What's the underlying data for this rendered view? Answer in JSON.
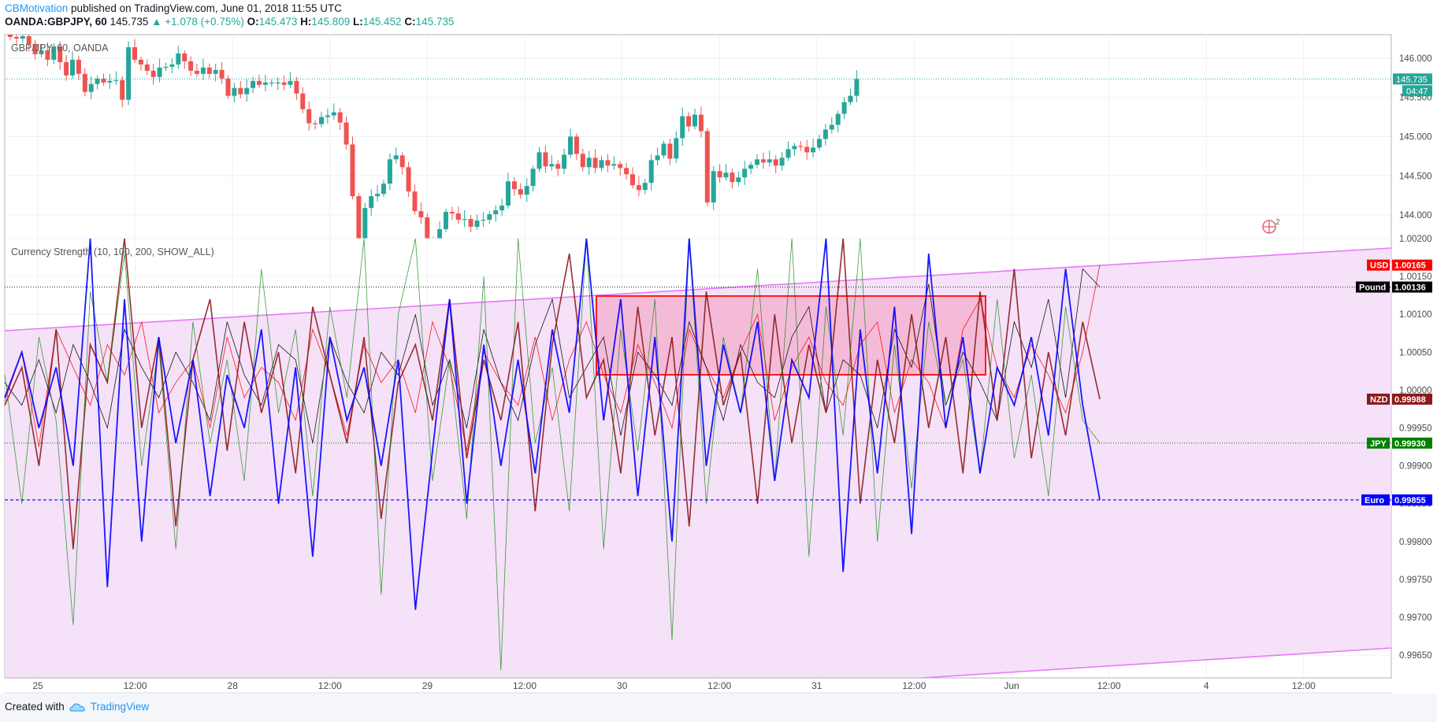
{
  "header": {
    "author": "CBMotivation",
    "published_text": " published on TradingView.com, June 01, 2018 11:55 UTC",
    "symbol": "OANDA:GBPJPY, 60",
    "last": "145.735",
    "change": "▲ +1.078 (+0.75%)",
    "o_label": "O:",
    "o_value": "145.473",
    "h_label": "H:",
    "h_value": "145.809",
    "l_label": "L:",
    "l_value": "145.452",
    "c_label": "C:",
    "c_value": "145.735"
  },
  "footer": {
    "created_with": "Created with",
    "brand": "TradingView"
  },
  "colors": {
    "up": "#26a69a",
    "down": "#ef5350",
    "usd": "#ff0000",
    "pound": "#000000",
    "nzd": "#8b1a1a",
    "jpy": "#008000",
    "euro": "#0000ff",
    "channel": "#e040fb"
  },
  "chart_data": [
    {
      "type": "candlestick",
      "title": "GBP/JPY, 60, OANDA",
      "price_axis_ticks": [
        "146.000",
        "145.500",
        "145.000",
        "144.500",
        "144.000"
      ],
      "ylim": [
        143.7,
        146.3
      ],
      "last_price_label": "145.735",
      "countdown_label": "04:47",
      "time_axis_ticks": [
        "25",
        "12:00",
        "28",
        "12:00",
        "29",
        "12:00",
        "30",
        "12:00",
        "31",
        "12:00",
        "Jun",
        "12:00",
        "4",
        "12:00"
      ],
      "candles_close": [
        146.27,
        146.25,
        146.28,
        146.18,
        146.05,
        146.1,
        145.98,
        146.15,
        145.95,
        145.78,
        145.98,
        145.8,
        145.57,
        145.67,
        145.74,
        145.69,
        145.71,
        145.72,
        145.47,
        146.14,
        145.98,
        145.92,
        145.84,
        145.76,
        145.88,
        145.89,
        145.92,
        146.06,
        145.96,
        145.84,
        145.8,
        145.88,
        145.8,
        145.85,
        145.74,
        145.52,
        145.62,
        145.54,
        145.62,
        145.71,
        145.66,
        145.69,
        145.69,
        145.69,
        145.66,
        145.71,
        145.55,
        145.35,
        145.17,
        145.16,
        145.25,
        145.27,
        145.31,
        145.18,
        144.9,
        144.24,
        143.6,
        144.09,
        144.24,
        144.27,
        144.4,
        144.71,
        144.76,
        144.61,
        144.3,
        144.05,
        143.97,
        143.65,
        143.44,
        143.82,
        144.04,
        144.02,
        143.94,
        143.95,
        143.85,
        143.93,
        143.94,
        144.01,
        144.06,
        144.12,
        144.43,
        144.33,
        144.26,
        144.37,
        144.59,
        144.8,
        144.62,
        144.65,
        144.59,
        144.77,
        145.0,
        144.78,
        144.61,
        144.73,
        144.6,
        144.7,
        144.63,
        144.65,
        144.6,
        144.52,
        144.38,
        144.32,
        144.41,
        144.7,
        144.76,
        144.91,
        144.72,
        144.98,
        145.26,
        145.13,
        145.28,
        145.07,
        144.16,
        144.56,
        144.48,
        144.54,
        144.42,
        144.48,
        144.59,
        144.64,
        144.71,
        144.67,
        144.71,
        144.63,
        144.73,
        144.84,
        144.88,
        144.87,
        144.8,
        144.86,
        144.97,
        145.09,
        145.15,
        145.29,
        145.44,
        145.52,
        145.735
      ]
    },
    {
      "type": "line",
      "title": "Currency Strength (10, 100, 200, SHOW_ALL)",
      "axis_ticks": [
        "1.00200",
        "1.00150",
        "1.00100",
        "1.00050",
        "1.00000",
        "0.99950",
        "0.99900",
        "0.99850",
        "0.99800",
        "0.99750",
        "0.99700",
        "0.99650"
      ],
      "ylim": [
        0.9962,
        1.002
      ],
      "series": [
        {
          "name": "USD",
          "last_label": "1.00165",
          "values": [
            0.99985,
            1.0005,
            0.99925,
            1.0008,
            1.0003,
            0.9998,
            1.0006,
            1.0002,
            1.0009,
            0.9997,
            1.0001,
            1.0004,
            0.9995,
            1.0007,
            0.9999,
            1.0003,
            1.0001,
            0.9996,
            1.0008,
            1.0002,
            0.9994,
            1.0006,
            1.0001,
            1.0004,
            0.9997,
            1.0009,
            1.0003,
            0.9992,
            1.0005,
            1.0001,
            0.9998,
            1.0007,
            0.9996,
            1.0004,
            1.0009,
            1.0002,
            0.9997,
            1.0006,
            1.0001,
            0.9995,
            1.0008,
            1.0003,
            0.9999,
            1.0005,
            1.001,
            0.9996,
            1.0003,
            1.0007,
            1.0001,
            0.9998,
            1.0006,
            1.0009,
            0.9997,
            1.0004,
            1.0001,
            0.9995,
            1.0008,
            1.0012,
            1.0003,
            0.9999,
            1.0006,
            1.0002,
            0.9997,
            1.0005,
            1.00165
          ]
        },
        {
          "name": "Pound",
          "last_label": "1.00136",
          "values": [
            1.0001,
            0.9998,
            1.0004,
            0.9997,
            1.0006,
            1.0001,
            0.9995,
            1.0008,
            1.0003,
            0.9999,
            1.0005,
            1.0001,
            0.9996,
            1.0009,
            1.0002,
            0.9998,
            1.0006,
            1.0004,
            0.9993,
            1.0007,
            1.0001,
            0.9997,
            1.0005,
            1.0002,
            1.001,
            0.9998,
            1.0004,
            0.9995,
            1.0008,
            1.0001,
            0.9996,
            1.0006,
            1.0012,
            0.9999,
            1.0003,
            1.0007,
            0.9994,
            1.0005,
            1.0002,
            0.9998,
            1.0009,
            1.0003,
            0.9996,
            1.0006,
            1.0001,
            0.9999,
            1.0007,
            1.0011,
            0.9997,
            1.0004,
            1.0002,
            0.9995,
            1.0008,
            1.0003,
            1.0014,
            0.9998,
            1.0005,
            1.0001,
            0.9996,
            1.0009,
            1.0003,
            1.0012,
            0.9999,
            1.0016,
            1.00136
          ]
        },
        {
          "name": "NZD",
          "last_label": "0.99988",
          "values": [
            0.9998,
            1.0003,
            0.999,
            1.0008,
            0.9979,
            1.0006,
            1.0001,
            1.002,
            0.9995,
            1.0007,
            0.9982,
            1.0004,
            1.0012,
            0.9992,
            1.0009,
            0.9997,
            1.0005,
            0.9989,
            1.0011,
            1.0002,
            0.9993,
            1.0007,
            0.9983,
            1.0001,
            1.0006,
            0.9996,
            1.0012,
            0.9991,
            1.0004,
            0.9996,
            1.0009,
            0.9984,
            1.0006,
            1.0018,
            0.9999,
            1.0004,
            0.9989,
            1.0011,
            0.9994,
            1.0007,
            0.9982,
            1.0013,
            0.9998,
            1.0005,
            0.9985,
            1.001,
            0.9993,
            1.0006,
            0.9997,
            1.002,
            0.9985,
            1.0004,
            0.9993,
            1.001,
            0.9995,
            1.0007,
            0.9989,
            1.0013,
            0.9996,
            1.0016,
            0.9991,
            1.0005,
            0.9994,
            1.0009,
            0.99988
          ]
        },
        {
          "name": "JPY",
          "last_label": "0.99930",
          "values": [
            1.0002,
            0.9985,
            1.0007,
            0.9996,
            0.9969,
            1.0013,
            1.0001,
            1.0018,
            0.999,
            1.0006,
            0.9979,
            1.0009,
            0.9993,
            1.0004,
            0.9988,
            1.0016,
            0.9997,
            1.0008,
            0.9986,
            1.0011,
            0.9999,
            1.002,
            0.9973,
            1.001,
            1.002,
            0.9988,
            1.0004,
            0.9983,
            1.0015,
            0.9963,
            1.002,
            0.9993,
            1.0003,
            0.9984,
            1.002,
            0.9979,
            1.0008,
            0.9992,
            1.0012,
            0.9967,
            1.002,
            0.9985,
            1.0007,
            0.9997,
            1.0016,
            0.9988,
            1.002,
            0.9978,
            1.0011,
            0.9994,
            1.002,
            0.998,
            1.0006,
            0.9987,
            1.0009,
            0.9998,
            1.0004,
            0.9989,
            1.0012,
            0.9991,
            1.0002,
            0.9986,
            1.0011,
            0.9996,
            0.9993
          ]
        },
        {
          "name": "Euro",
          "last_label": "0.99855",
          "values": [
            0.9999,
            1.0005,
            0.9995,
            1.0003,
            0.999,
            1.002,
            0.9974,
            1.0012,
            0.998,
            1.0007,
            0.9993,
            1.0004,
            0.9986,
            1.0002,
            0.9995,
            1.0008,
            0.9985,
            1.0003,
            0.9978,
            1.0007,
            0.9996,
            1.0003,
            0.999,
            1.0004,
            0.9971,
            0.9992,
            1.0012,
            0.9985,
            1.0006,
            0.999,
            1.0004,
            0.9989,
            1.0008,
            0.9997,
            1.002,
            0.9996,
            1.0012,
            0.9986,
            1.0007,
            0.998,
            1.002,
            0.999,
            1.0006,
            0.9997,
            1.0009,
            0.9988,
            1.0004,
            0.9999,
            1.002,
            0.9976,
            1.0008,
            0.9989,
            1.0011,
            0.9981,
            1.0018,
            0.9995,
            1.0007,
            0.9989,
            1.0003,
            0.9998,
            1.0007,
            0.9994,
            1.0016,
            0.9998,
            0.99855
          ]
        }
      ]
    }
  ]
}
